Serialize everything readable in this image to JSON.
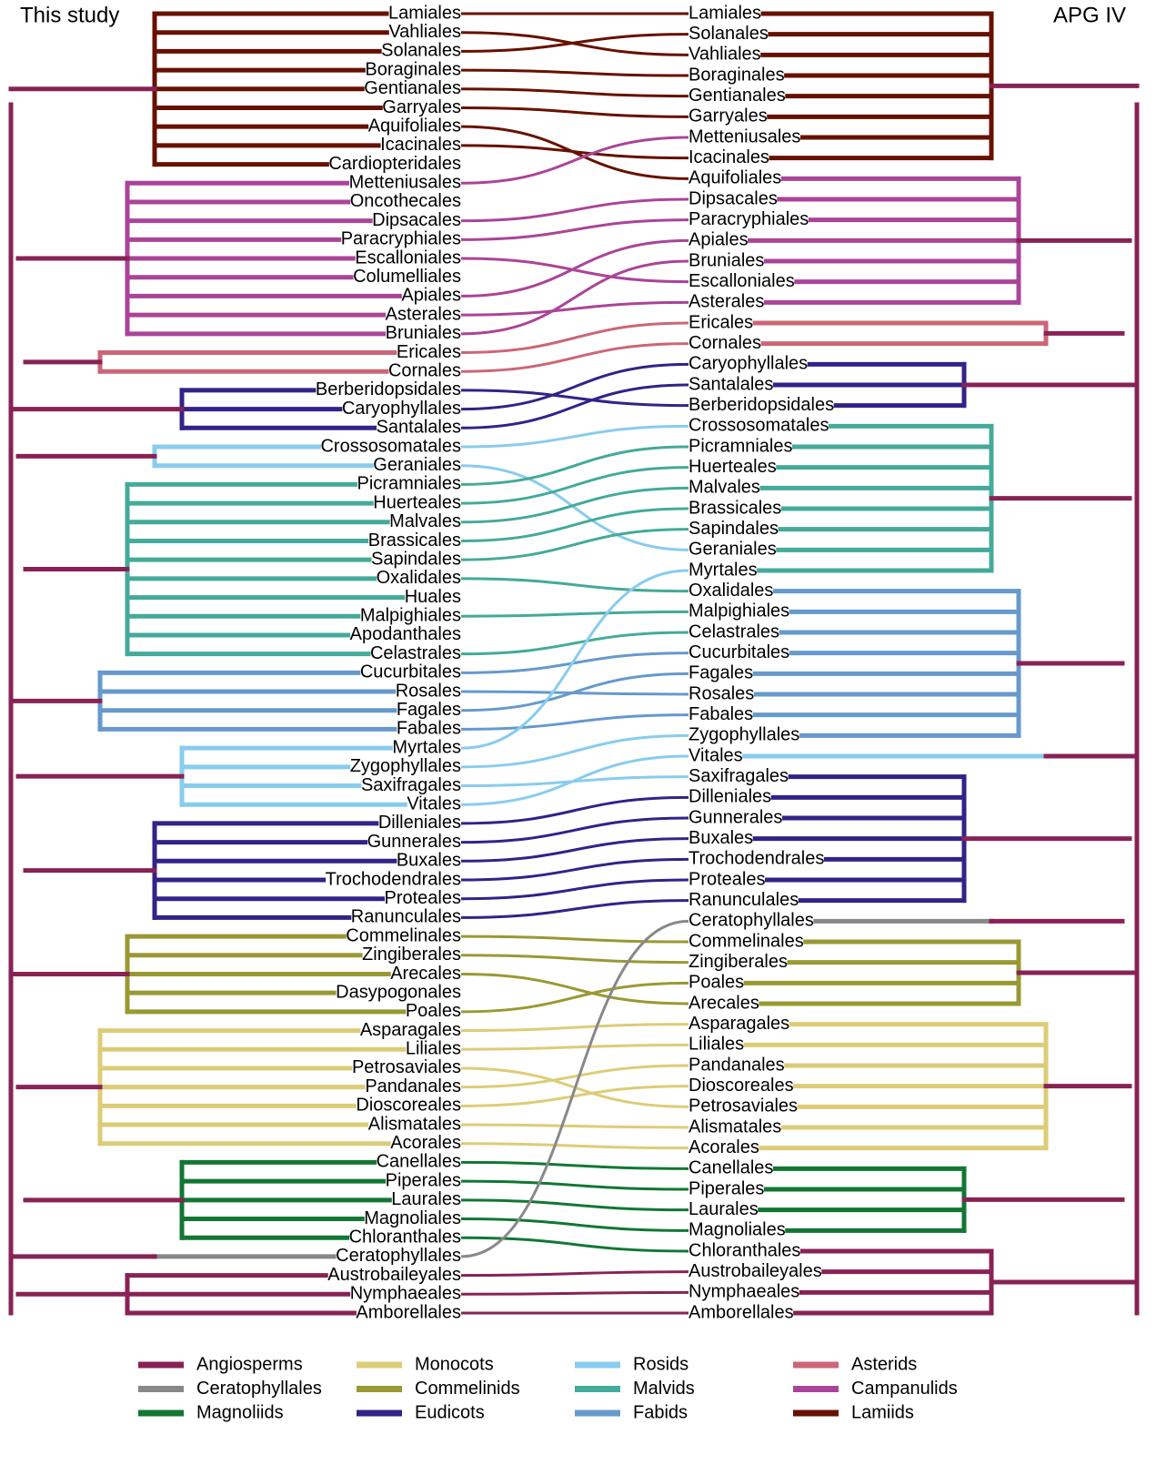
{
  "header": {
    "left_title": "This study",
    "right_title": "APG IV"
  },
  "legend": [
    {
      "name": "Angiosperms",
      "color": "#882255"
    },
    {
      "name": "Ceratophyllales",
      "color": "#888888"
    },
    {
      "name": "Magnoliids",
      "color": "#117733"
    },
    {
      "name": "Monocots",
      "color": "#ddcc77"
    },
    {
      "name": "Commelinids",
      "color": "#999933"
    },
    {
      "name": "Eudicots",
      "color": "#332288"
    },
    {
      "name": "Rosids",
      "color": "#88ccee"
    },
    {
      "name": "Malvids",
      "color": "#44aa99"
    },
    {
      "name": "Fabids",
      "color": "#6699cc"
    },
    {
      "name": "Asterids",
      "color": "#cc6677"
    },
    {
      "name": "Campanulids",
      "color": "#aa4499"
    },
    {
      "name": "Lamiids",
      "color": "#661100"
    }
  ],
  "left": [
    {
      "name": "Lamiales",
      "clade": "Lamiids"
    },
    {
      "name": "Vahliales",
      "clade": "Lamiids"
    },
    {
      "name": "Solanales",
      "clade": "Lamiids"
    },
    {
      "name": "Boraginales",
      "clade": "Lamiids"
    },
    {
      "name": "Gentianales",
      "clade": "Lamiids"
    },
    {
      "name": "Garryales",
      "clade": "Lamiids"
    },
    {
      "name": "Aquifoliales",
      "clade": "Lamiids"
    },
    {
      "name": "Icacinales",
      "clade": "Lamiids"
    },
    {
      "name": "Cardiopteridales",
      "clade": "Lamiids"
    },
    {
      "name": "Metteniusales",
      "clade": "Campanulids"
    },
    {
      "name": "Oncothecales",
      "clade": "Campanulids"
    },
    {
      "name": "Dipsacales",
      "clade": "Campanulids"
    },
    {
      "name": "Paracryphiales",
      "clade": "Campanulids"
    },
    {
      "name": "Escalloniales",
      "clade": "Campanulids"
    },
    {
      "name": "Columelliales",
      "clade": "Campanulids"
    },
    {
      "name": "Apiales",
      "clade": "Campanulids"
    },
    {
      "name": "Asterales",
      "clade": "Campanulids"
    },
    {
      "name": "Bruniales",
      "clade": "Campanulids"
    },
    {
      "name": "Ericales",
      "clade": "Asterids"
    },
    {
      "name": "Cornales",
      "clade": "Asterids"
    },
    {
      "name": "Berberidopsidales",
      "clade": "Eudicots"
    },
    {
      "name": "Caryophyllales",
      "clade": "Eudicots"
    },
    {
      "name": "Santalales",
      "clade": "Eudicots"
    },
    {
      "name": "Crossosomatales",
      "clade": "Rosids"
    },
    {
      "name": "Geraniales",
      "clade": "Rosids"
    },
    {
      "name": "Picramniales",
      "clade": "Malvids"
    },
    {
      "name": "Huerteales",
      "clade": "Malvids"
    },
    {
      "name": "Malvales",
      "clade": "Malvids"
    },
    {
      "name": "Brassicales",
      "clade": "Malvids"
    },
    {
      "name": "Sapindales",
      "clade": "Malvids"
    },
    {
      "name": "Oxalidales",
      "clade": "Malvids"
    },
    {
      "name": "Huales",
      "clade": "Malvids"
    },
    {
      "name": "Malpighiales",
      "clade": "Malvids"
    },
    {
      "name": "Apodanthales",
      "clade": "Malvids"
    },
    {
      "name": "Celastrales",
      "clade": "Malvids"
    },
    {
      "name": "Cucurbitales",
      "clade": "Fabids"
    },
    {
      "name": "Rosales",
      "clade": "Fabids"
    },
    {
      "name": "Fagales",
      "clade": "Fabids"
    },
    {
      "name": "Fabales",
      "clade": "Fabids"
    },
    {
      "name": "Myrtales",
      "clade": "Rosids"
    },
    {
      "name": "Zygophyllales",
      "clade": "Rosids"
    },
    {
      "name": "Saxifragales",
      "clade": "Rosids"
    },
    {
      "name": "Vitales",
      "clade": "Rosids"
    },
    {
      "name": "Dilleniales",
      "clade": "Eudicots"
    },
    {
      "name": "Gunnerales",
      "clade": "Eudicots"
    },
    {
      "name": "Buxales",
      "clade": "Eudicots"
    },
    {
      "name": "Trochodendrales",
      "clade": "Eudicots"
    },
    {
      "name": "Proteales",
      "clade": "Eudicots"
    },
    {
      "name": "Ranunculales",
      "clade": "Eudicots"
    },
    {
      "name": "Commelinales",
      "clade": "Commelinids"
    },
    {
      "name": "Zingiberales",
      "clade": "Commelinids"
    },
    {
      "name": "Arecales",
      "clade": "Commelinids"
    },
    {
      "name": "Dasypogonales",
      "clade": "Commelinids"
    },
    {
      "name": "Poales",
      "clade": "Commelinids"
    },
    {
      "name": "Asparagales",
      "clade": "Monocots"
    },
    {
      "name": "Liliales",
      "clade": "Monocots"
    },
    {
      "name": "Petrosaviales",
      "clade": "Monocots"
    },
    {
      "name": "Pandanales",
      "clade": "Monocots"
    },
    {
      "name": "Dioscoreales",
      "clade": "Monocots"
    },
    {
      "name": "Alismatales",
      "clade": "Monocots"
    },
    {
      "name": "Acorales",
      "clade": "Monocots"
    },
    {
      "name": "Canellales",
      "clade": "Magnoliids"
    },
    {
      "name": "Piperales",
      "clade": "Magnoliids"
    },
    {
      "name": "Laurales",
      "clade": "Magnoliids"
    },
    {
      "name": "Magnoliales",
      "clade": "Magnoliids"
    },
    {
      "name": "Chloranthales",
      "clade": "Magnoliids"
    },
    {
      "name": "Ceratophyllales",
      "clade": "Ceratophyllales"
    },
    {
      "name": "Austrobaileyales",
      "clade": "Angiosperms"
    },
    {
      "name": "Nymphaeales",
      "clade": "Angiosperms"
    },
    {
      "name": "Amborellales",
      "clade": "Angiosperms"
    }
  ],
  "right": [
    {
      "name": "Lamiales",
      "clade": "Lamiids"
    },
    {
      "name": "Solanales",
      "clade": "Lamiids"
    },
    {
      "name": "Vahliales",
      "clade": "Lamiids"
    },
    {
      "name": "Boraginales",
      "clade": "Lamiids"
    },
    {
      "name": "Gentianales",
      "clade": "Lamiids"
    },
    {
      "name": "Garryales",
      "clade": "Lamiids"
    },
    {
      "name": "Metteniusales",
      "clade": "Lamiids"
    },
    {
      "name": "Icacinales",
      "clade": "Lamiids"
    },
    {
      "name": "Aquifoliales",
      "clade": "Campanulids"
    },
    {
      "name": "Dipsacales",
      "clade": "Campanulids"
    },
    {
      "name": "Paracryphiales",
      "clade": "Campanulids"
    },
    {
      "name": "Apiales",
      "clade": "Campanulids"
    },
    {
      "name": "Bruniales",
      "clade": "Campanulids"
    },
    {
      "name": "Escalloniales",
      "clade": "Campanulids"
    },
    {
      "name": "Asterales",
      "clade": "Campanulids"
    },
    {
      "name": "Ericales",
      "clade": "Asterids"
    },
    {
      "name": "Cornales",
      "clade": "Asterids"
    },
    {
      "name": "Caryophyllales",
      "clade": "Eudicots"
    },
    {
      "name": "Santalales",
      "clade": "Eudicots"
    },
    {
      "name": "Berberidopsidales",
      "clade": "Eudicots"
    },
    {
      "name": "Crossosomatales",
      "clade": "Malvids"
    },
    {
      "name": "Picramniales",
      "clade": "Malvids"
    },
    {
      "name": "Huerteales",
      "clade": "Malvids"
    },
    {
      "name": "Malvales",
      "clade": "Malvids"
    },
    {
      "name": "Brassicales",
      "clade": "Malvids"
    },
    {
      "name": "Sapindales",
      "clade": "Malvids"
    },
    {
      "name": "Geraniales",
      "clade": "Malvids"
    },
    {
      "name": "Myrtales",
      "clade": "Malvids"
    },
    {
      "name": "Oxalidales",
      "clade": "Fabids"
    },
    {
      "name": "Malpighiales",
      "clade": "Fabids"
    },
    {
      "name": "Celastrales",
      "clade": "Fabids"
    },
    {
      "name": "Cucurbitales",
      "clade": "Fabids"
    },
    {
      "name": "Fagales",
      "clade": "Fabids"
    },
    {
      "name": "Rosales",
      "clade": "Fabids"
    },
    {
      "name": "Fabales",
      "clade": "Fabids"
    },
    {
      "name": "Zygophyllales",
      "clade": "Fabids"
    },
    {
      "name": "Vitales",
      "clade": "Rosids"
    },
    {
      "name": "Saxifragales",
      "clade": "Eudicots"
    },
    {
      "name": "Dilleniales",
      "clade": "Eudicots"
    },
    {
      "name": "Gunnerales",
      "clade": "Eudicots"
    },
    {
      "name": "Buxales",
      "clade": "Eudicots"
    },
    {
      "name": "Trochodendrales",
      "clade": "Eudicots"
    },
    {
      "name": "Proteales",
      "clade": "Eudicots"
    },
    {
      "name": "Ranunculales",
      "clade": "Eudicots"
    },
    {
      "name": "Ceratophyllales",
      "clade": "Ceratophyllales"
    },
    {
      "name": "Commelinales",
      "clade": "Commelinids"
    },
    {
      "name": "Zingiberales",
      "clade": "Commelinids"
    },
    {
      "name": "Poales",
      "clade": "Commelinids"
    },
    {
      "name": "Arecales",
      "clade": "Commelinids"
    },
    {
      "name": "Asparagales",
      "clade": "Monocots"
    },
    {
      "name": "Liliales",
      "clade": "Monocots"
    },
    {
      "name": "Pandanales",
      "clade": "Monocots"
    },
    {
      "name": "Dioscoreales",
      "clade": "Monocots"
    },
    {
      "name": "Petrosaviales",
      "clade": "Monocots"
    },
    {
      "name": "Alismatales",
      "clade": "Monocots"
    },
    {
      "name": "Acorales",
      "clade": "Monocots"
    },
    {
      "name": "Canellales",
      "clade": "Magnoliids"
    },
    {
      "name": "Piperales",
      "clade": "Magnoliids"
    },
    {
      "name": "Laurales",
      "clade": "Magnoliids"
    },
    {
      "name": "Magnoliales",
      "clade": "Magnoliids"
    },
    {
      "name": "Chloranthales",
      "clade": "Angiosperms"
    },
    {
      "name": "Austrobaileyales",
      "clade": "Angiosperms"
    },
    {
      "name": "Nymphaeales",
      "clade": "Angiosperms"
    },
    {
      "name": "Amborellales",
      "clade": "Angiosperms"
    }
  ]
}
